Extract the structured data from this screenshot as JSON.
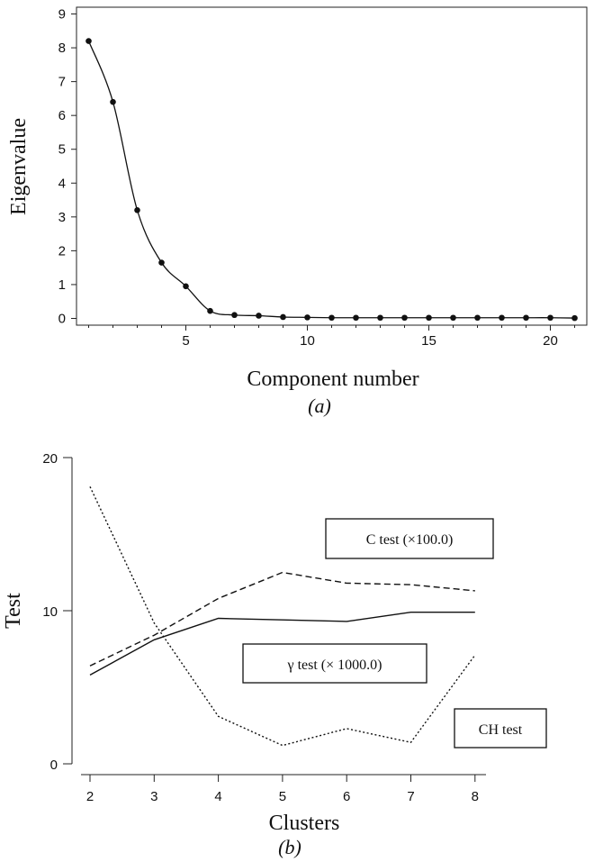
{
  "chart_data": [
    {
      "type": "line",
      "panel_label": "(a)",
      "xlabel": "Component number",
      "ylabel": "Eigenvalue",
      "xlim": [
        0.5,
        21.5
      ],
      "ylim": [
        -0.2,
        9.2
      ],
      "xticks": [
        5,
        10,
        15,
        20
      ],
      "yticks": [
        0,
        1,
        2,
        3,
        4,
        5,
        6,
        7,
        8,
        9
      ],
      "grid": false,
      "series": [
        {
          "markers": true,
          "x": [
            1,
            2,
            3,
            4,
            5,
            6,
            7,
            8,
            9,
            10,
            11,
            12,
            13,
            14,
            15,
            16,
            17,
            18,
            19,
            20,
            21
          ],
          "y": [
            8.2,
            6.4,
            3.2,
            1.65,
            0.95,
            0.22,
            0.1,
            0.08,
            0.04,
            0.03,
            0.02,
            0.02,
            0.02,
            0.02,
            0.02,
            0.02,
            0.02,
            0.02,
            0.02,
            0.02,
            0.01
          ]
        }
      ]
    },
    {
      "type": "line",
      "panel_label": "(b)",
      "xlabel": "Clusters",
      "ylabel": "Test",
      "xlim": [
        1.6,
        8.2
      ],
      "ylim": [
        0,
        20
      ],
      "xticks": [
        2,
        3,
        4,
        5,
        6,
        7,
        8
      ],
      "yticks": [
        0,
        10,
        20
      ],
      "grid": false,
      "series": [
        {
          "label": "C test (×100.0)",
          "style": "dashed",
          "x": [
            2,
            3,
            4,
            5,
            6,
            7,
            8
          ],
          "y": [
            6.4,
            8.4,
            10.8,
            12.5,
            11.8,
            11.7,
            11.3
          ]
        },
        {
          "label": "γ test (× 1000.0)",
          "style": "solid",
          "x": [
            2,
            3,
            4,
            5,
            6,
            7,
            8
          ],
          "y": [
            5.8,
            8.1,
            9.5,
            9.4,
            9.3,
            9.9,
            9.9
          ]
        },
        {
          "label": "CH test",
          "style": "dotted",
          "x": [
            2,
            3,
            4,
            5,
            6,
            7,
            8
          ],
          "y": [
            18.1,
            9.2,
            3.1,
            1.2,
            2.3,
            1.4,
            7.1
          ]
        }
      ],
      "annotations": [
        {
          "text": "C test (×100.0)",
          "series": 0
        },
        {
          "text": "γ test (× 1000.0)",
          "series": 1
        },
        {
          "text": "CH test",
          "series": 2
        }
      ]
    }
  ]
}
